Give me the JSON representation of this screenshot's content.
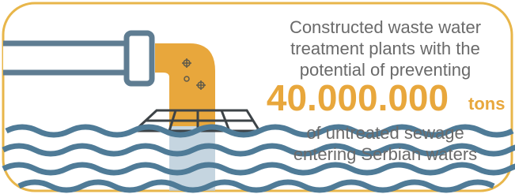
{
  "text": {
    "intro_lines": [
      "Constructed waste water",
      "treatment plants with the",
      "potential of preventing"
    ],
    "number": "40.000.000",
    "unit": "tons",
    "outro_lines": [
      "of untreated sewage",
      "entering Serbian waters"
    ]
  }
}
